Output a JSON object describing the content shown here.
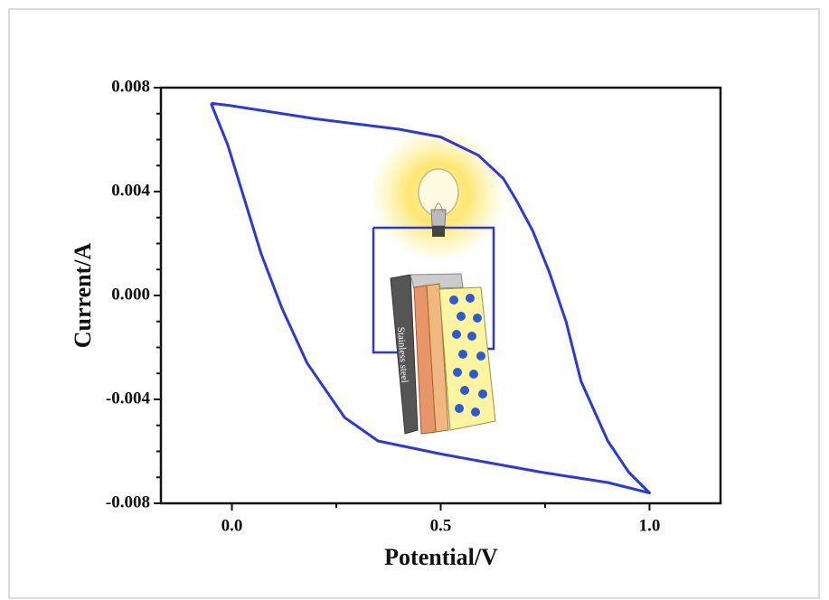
{
  "chart_data": {
    "type": "line",
    "xlabel": "Potential/V",
    "ylabel": "Current/A",
    "x": [
      -0.05,
      0.0,
      0.2,
      0.4,
      0.5,
      0.59,
      0.65,
      0.68,
      0.72,
      0.76,
      0.8,
      0.836,
      0.9,
      0.95,
      1.0,
      0.9,
      0.74,
      0.5,
      0.35,
      0.27,
      0.18,
      0.12,
      0.07,
      0.03,
      -0.01,
      -0.05
    ],
    "values": [
      0.0074,
      0.0073,
      0.0068,
      0.0064,
      0.0061,
      0.0054,
      0.0045,
      0.0037,
      0.0025,
      0.0009,
      -0.001,
      -0.0033,
      -0.0056,
      -0.0068,
      -0.0076,
      -0.0072,
      -0.0068,
      -0.0061,
      -0.0056,
      -0.0047,
      -0.0026,
      -0.0005,
      0.0016,
      0.0037,
      0.0058,
      0.0074
    ],
    "color": "#2b39dc",
    "xlim": [
      -0.17,
      1.17
    ],
    "ylim": [
      -0.008,
      0.008
    ],
    "xticks": [
      {
        "value": 0,
        "label": "0.0"
      },
      0.5,
      {
        "value": 1,
        "label": "1.0"
      }
    ],
    "yticks": [
      -0.008,
      -0.004,
      {
        "value": 0,
        "label": "0.000"
      },
      0.004,
      0.008
    ],
    "annotations": [
      "Stainless steel"
    ]
  }
}
